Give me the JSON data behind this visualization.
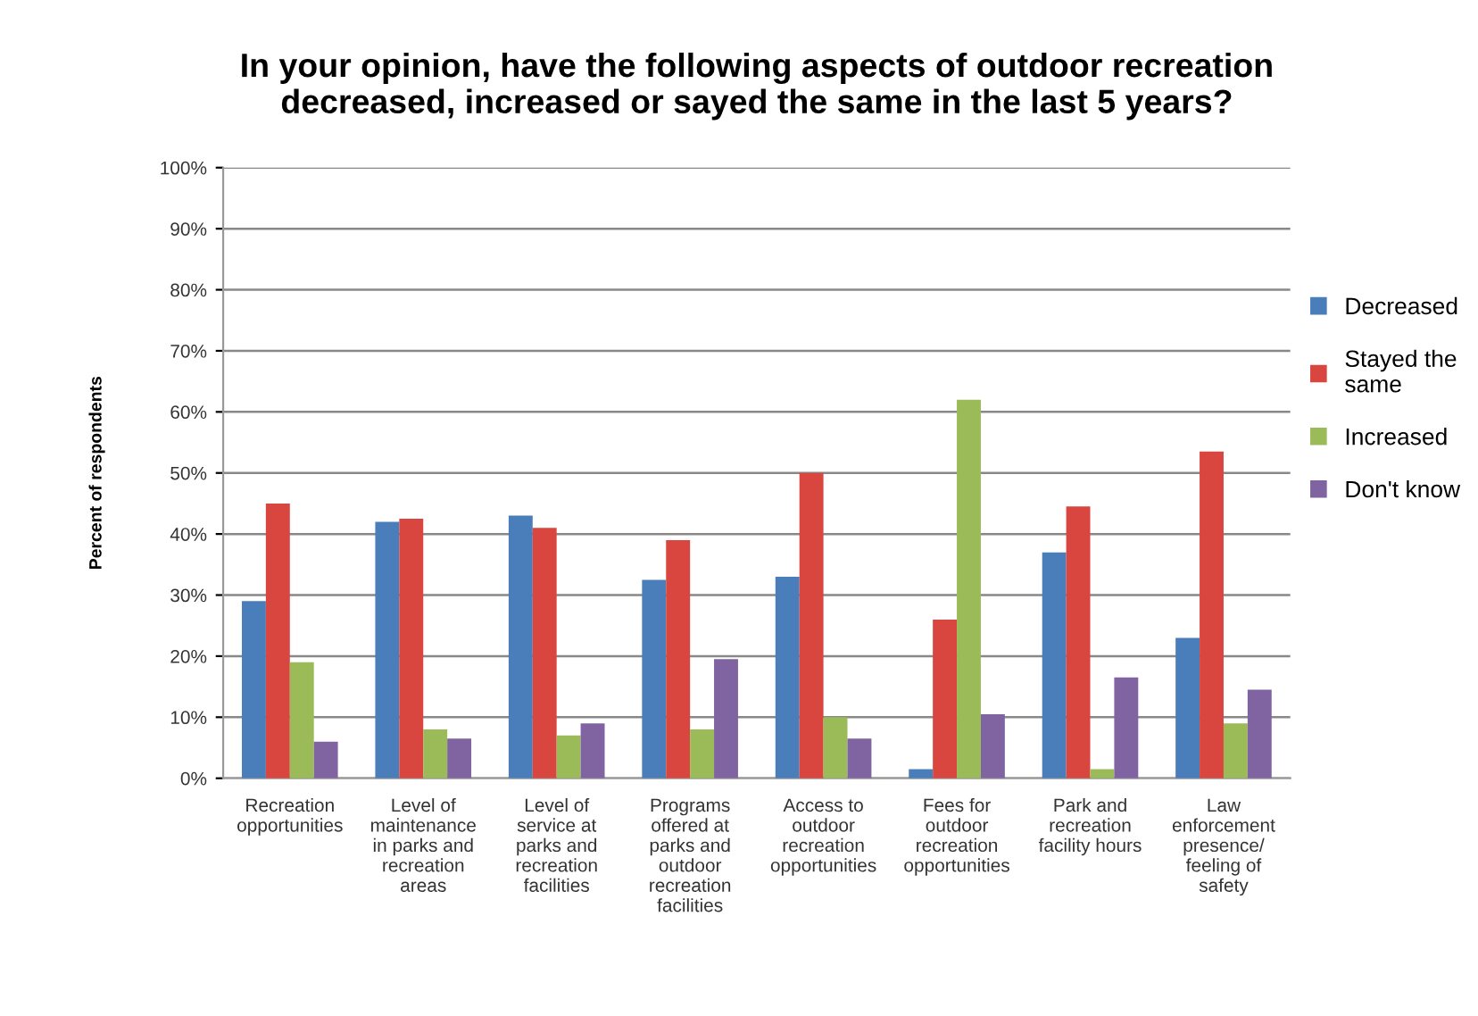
{
  "chart_data": {
    "type": "bar",
    "title": "In your opinion, have the following aspects of outdoor recreation\ndecreased, increased or sayed the same in the last 5 years?",
    "ylabel": "Percent of respondents",
    "categories": [
      "Recreation\nopportunities",
      "Level of\nmaintenance\nin parks and\nrecreation\nareas",
      "Level of\nservice at\nparks and\nrecreation\nfacilities",
      "Programs\noffered at\nparks and\noutdoor\nrecreation\nfacilities",
      "Access to\noutdoor\nrecreation\nopportunities",
      "Fees for\noutdoor\nrecreation\nopportunities",
      "Park and\nrecreation\nfacility hours",
      "Law\nenforcement\npresence/\nfeeling of\nsafety"
    ],
    "series": [
      {
        "name": "Decreased",
        "color": "#4a7ebb",
        "values": [
          29,
          42,
          43,
          32.5,
          33,
          1.5,
          37,
          23
        ]
      },
      {
        "name": "Stayed the\nsame",
        "color": "#d9463f",
        "values": [
          45,
          42.5,
          41,
          39,
          50,
          26,
          44.5,
          53.5
        ]
      },
      {
        "name": "Increased",
        "color": "#9bbb59",
        "values": [
          19,
          8,
          7,
          8,
          10,
          62,
          1.5,
          9
        ]
      },
      {
        "name": "Don't know",
        "color": "#8064a2",
        "values": [
          6,
          6.5,
          9,
          19.5,
          6.5,
          10.5,
          16.5,
          14.5
        ]
      }
    ],
    "ylim": [
      0,
      100
    ],
    "yticks": [
      {
        "value": 0,
        "label": "0%"
      },
      {
        "value": 10,
        "label": "10%"
      },
      {
        "value": 20,
        "label": "20%"
      },
      {
        "value": 30,
        "label": "30%"
      },
      {
        "value": 40,
        "label": "40%"
      },
      {
        "value": 50,
        "label": "50%"
      },
      {
        "value": 60,
        "label": "60%"
      },
      {
        "value": 70,
        "label": "70%"
      },
      {
        "value": 80,
        "label": "80%"
      },
      {
        "value": 90,
        "label": "90%"
      },
      {
        "value": 100,
        "label": "100%"
      }
    ],
    "grid": "y",
    "legend": "right"
  }
}
